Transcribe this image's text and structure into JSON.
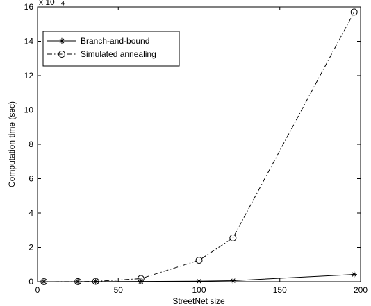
{
  "chart_data": {
    "type": "line",
    "xlabel": "StreetNet size",
    "ylabel": "Computation time (sec)",
    "xlim": [
      0,
      200
    ],
    "ylim": [
      0,
      160000
    ],
    "x_ticks": [
      0,
      50,
      100,
      150,
      200
    ],
    "y_ticks": [
      0,
      20000,
      40000,
      60000,
      80000,
      100000,
      120000,
      140000,
      160000
    ],
    "y_tick_labels": [
      "0",
      "2",
      "4",
      "6",
      "8",
      "10",
      "12",
      "14",
      "16"
    ],
    "y_multiplier": {
      "base": "x 10",
      "exponent": "4"
    },
    "grid": false,
    "legend_position": "top-left",
    "series": [
      {
        "name": "Branch-and-bound",
        "marker": "asterisk",
        "line_style": "solid",
        "color": "#000000",
        "x": [
          4,
          25,
          36,
          64,
          100,
          121,
          196
        ],
        "y": [
          5,
          20,
          50,
          150,
          300,
          600,
          4200
        ]
      },
      {
        "name": "Simulated annealing",
        "marker": "circle",
        "line_style": "dash-dot",
        "color": "#000000",
        "x": [
          4,
          25,
          36,
          64,
          100,
          121,
          196
        ],
        "y": [
          5,
          60,
          200,
          1800,
          12500,
          25500,
          157000
        ]
      }
    ]
  }
}
